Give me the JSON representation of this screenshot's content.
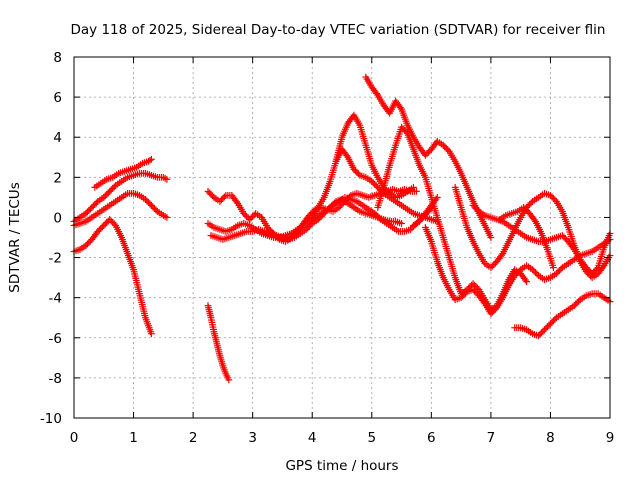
{
  "chart_data": {
    "type": "scatter",
    "title": "Day 118 of 2025, Sidereal Day-to-day VTEC variation (SDTVAR) for receiver flin",
    "xlabel": "GPS time / hours",
    "ylabel": "SDTVAR / TECUs",
    "xlim": [
      0,
      9
    ],
    "ylim": [
      -10,
      8
    ],
    "xticks": [
      0,
      1,
      2,
      3,
      4,
      5,
      6,
      7,
      8,
      9
    ],
    "yticks": [
      -10,
      -8,
      -6,
      -4,
      -2,
      0,
      2,
      4,
      6,
      8
    ],
    "grid": true,
    "marker": "+",
    "color": "#ff0000",
    "series": [
      {
        "x": [
          0.0,
          0.1,
          0.2,
          0.3,
          0.4,
          0.5,
          0.6,
          0.7,
          0.8,
          0.9,
          1.0,
          1.1,
          1.2,
          1.3
        ],
        "y": [
          -1.7,
          -1.6,
          -1.4,
          -1.1,
          -0.7,
          -0.4,
          -0.1,
          -0.4,
          -1.0,
          -1.8,
          -2.6,
          -3.8,
          -5.0,
          -5.8
        ]
      },
      {
        "x": [
          0.0,
          0.1,
          0.2,
          0.3,
          0.4,
          0.5,
          0.6,
          0.7,
          0.8,
          0.9,
          1.0,
          1.1,
          1.2,
          1.3,
          1.4,
          1.5,
          1.56
        ],
        "y": [
          -0.4,
          -0.3,
          -0.2,
          0.0,
          0.2,
          0.4,
          0.6,
          0.8,
          1.0,
          1.2,
          1.2,
          1.1,
          0.9,
          0.6,
          0.3,
          0.1,
          0.0
        ]
      },
      {
        "x": [
          0.0,
          0.1,
          0.2,
          0.3,
          0.4,
          0.5,
          0.6,
          0.7,
          0.8,
          0.9,
          1.0,
          1.1,
          1.2,
          1.3,
          1.4,
          1.5,
          1.56
        ],
        "y": [
          -0.2,
          0.0,
          0.2,
          0.5,
          0.8,
          1.0,
          1.3,
          1.6,
          1.8,
          2.0,
          2.1,
          2.2,
          2.2,
          2.1,
          2.0,
          2.0,
          1.9
        ]
      },
      {
        "x": [
          0.35,
          0.45,
          0.55,
          0.65,
          0.75,
          0.85,
          0.95,
          1.05,
          1.15,
          1.25,
          1.3
        ],
        "y": [
          1.5,
          1.7,
          1.9,
          2.0,
          2.2,
          2.3,
          2.4,
          2.5,
          2.7,
          2.8,
          2.9
        ]
      },
      {
        "x": [
          2.25,
          2.3,
          2.35,
          2.4,
          2.45,
          2.5,
          2.55,
          2.6
        ],
        "y": [
          -4.4,
          -5.0,
          -5.7,
          -6.3,
          -6.9,
          -7.4,
          -7.8,
          -8.1
        ]
      },
      {
        "x": [
          2.25,
          2.35,
          2.45,
          2.55,
          2.65,
          2.75,
          2.85,
          2.95,
          3.05,
          3.15,
          3.25,
          3.35,
          3.45,
          3.55,
          3.65,
          3.75,
          3.85,
          3.95,
          4.05,
          4.15,
          4.25,
          4.35,
          4.45,
          4.55,
          4.65,
          4.75,
          4.85,
          4.95,
          5.05,
          5.15,
          5.25,
          5.35,
          5.45,
          5.55,
          5.65,
          5.75,
          5.85,
          5.95,
          6.0
        ],
        "y": [
          -0.3,
          -0.5,
          -0.6,
          -0.7,
          -0.6,
          -0.4,
          -0.3,
          -0.4,
          -0.6,
          -0.8,
          -0.9,
          -1.0,
          -1.0,
          -0.9,
          -0.8,
          -0.6,
          -0.4,
          -0.2,
          0.0,
          0.2,
          0.4,
          0.6,
          0.8,
          1.0,
          0.9,
          0.8,
          0.6,
          0.4,
          0.2,
          -0.1,
          -0.3,
          -0.5,
          -0.7,
          -0.7,
          -0.6,
          -0.3,
          0.0,
          0.3,
          0.5
        ]
      },
      {
        "x": [
          2.25,
          2.35,
          2.45,
          2.55,
          2.65,
          2.75,
          2.85,
          2.95,
          3.05,
          3.15,
          3.25,
          3.35,
          3.45,
          3.55,
          3.65,
          3.75,
          3.85,
          3.95,
          4.05,
          4.15,
          4.25,
          4.35,
          4.45,
          4.55,
          4.65,
          4.75,
          4.85,
          4.95,
          5.05,
          5.15,
          5.25,
          5.35,
          5.45,
          5.55,
          5.65,
          5.75
        ],
        "y": [
          1.3,
          1.0,
          0.8,
          1.1,
          1.1,
          0.7,
          0.2,
          -0.1,
          0.2,
          0.0,
          -0.5,
          -0.8,
          -1.1,
          -1.2,
          -1.0,
          -0.7,
          -0.3,
          0.1,
          0.4,
          0.5,
          0.4,
          0.3,
          0.5,
          0.8,
          1.1,
          1.2,
          1.1,
          1.0,
          1.1,
          1.2,
          1.3,
          1.4,
          1.3,
          1.4,
          1.3,
          1.3
        ]
      },
      {
        "x": [
          2.3,
          2.4,
          2.5,
          2.6,
          2.7,
          2.8,
          2.9,
          3.0,
          3.1,
          3.2,
          3.3,
          3.4,
          3.5,
          3.6,
          3.7,
          3.8,
          3.9,
          4.0,
          4.1,
          4.2,
          4.3,
          4.4,
          4.5,
          4.6,
          4.7,
          4.8,
          4.9,
          5.0,
          5.1,
          5.2,
          5.3,
          5.4,
          5.5
        ],
        "y": [
          -0.9,
          -1.0,
          -1.1,
          -1.0,
          -0.9,
          -0.8,
          -0.7,
          -0.7,
          -0.6,
          -0.7,
          -0.8,
          -0.9,
          -1.0,
          -1.1,
          -1.0,
          -0.8,
          -0.6,
          -0.3,
          -0.1,
          0.2,
          0.5,
          0.8,
          0.9,
          0.7,
          0.5,
          0.3,
          0.2,
          0.1,
          0.0,
          -0.1,
          -0.2,
          -0.2,
          -0.3
        ]
      },
      {
        "x": [
          4.0,
          4.1,
          4.2,
          4.3,
          4.4,
          4.5,
          4.6,
          4.7,
          4.8,
          4.9,
          5.0,
          5.1,
          5.2,
          5.3,
          5.4,
          5.5,
          5.6,
          5.7,
          5.8,
          5.9,
          6.0,
          6.1
        ],
        "y": [
          0.0,
          0.5,
          1.0,
          1.8,
          2.8,
          3.4,
          3.0,
          2.4,
          2.1,
          2.0,
          1.8,
          1.5,
          1.2,
          1.0,
          0.8,
          0.6,
          0.4,
          0.2,
          0.1,
          0.0,
          -0.1,
          -0.2
        ]
      },
      {
        "x": [
          4.4,
          4.5,
          4.6,
          4.7,
          4.8,
          4.9,
          5.0,
          5.1,
          5.2,
          5.3,
          5.4,
          5.5,
          5.6,
          5.7
        ],
        "y": [
          2.8,
          4.0,
          4.7,
          5.1,
          4.6,
          3.6,
          2.6,
          2.0,
          1.5,
          1.2,
          1.0,
          1.1,
          1.3,
          1.5
        ]
      },
      {
        "x": [
          4.9,
          5.0,
          5.1,
          5.2,
          5.3,
          5.4,
          5.5,
          5.6,
          5.7,
          5.8,
          5.9,
          6.0,
          6.1,
          6.2,
          6.3,
          6.4,
          6.5,
          6.6,
          6.7,
          6.8,
          6.9,
          7.0
        ],
        "y": [
          7.0,
          6.5,
          6.1,
          5.6,
          5.2,
          5.8,
          5.4,
          4.6,
          4.0,
          3.5,
          3.1,
          3.4,
          3.8,
          3.6,
          3.3,
          2.8,
          2.2,
          1.5,
          0.8,
          0.2,
          -0.4,
          -1.0
        ]
      },
      {
        "x": [
          5.1,
          5.2,
          5.3,
          5.4,
          5.5,
          5.6,
          5.7,
          5.8,
          5.9,
          6.0,
          6.1,
          6.2,
          6.3,
          6.4,
          6.5,
          6.6,
          6.7,
          6.8,
          6.9,
          7.0,
          7.1,
          7.2,
          7.3,
          7.4,
          7.5,
          7.6
        ],
        "y": [
          0.5,
          1.5,
          2.6,
          3.6,
          4.5,
          4.2,
          3.4,
          2.6,
          2.0,
          1.0,
          0.0,
          -1.0,
          -2.0,
          -3.0,
          -3.8,
          -3.6,
          -3.3,
          -3.6,
          -4.1,
          -4.6,
          -4.4,
          -3.8,
          -3.1,
          -2.6,
          -2.8,
          -3.2
        ]
      },
      {
        "x": [
          5.7,
          5.8,
          5.9,
          6.0,
          6.1
        ],
        "y": [
          -0.4,
          -0.2,
          0.2,
          0.6,
          1.0
        ]
      },
      {
        "x": [
          5.9,
          6.0,
          6.1,
          6.2,
          6.3,
          6.4,
          6.5,
          6.6,
          6.7,
          6.8,
          6.9,
          7.0,
          7.1,
          7.2,
          7.3,
          7.4,
          7.5,
          7.6,
          7.7,
          7.8,
          7.9,
          8.0,
          8.1,
          8.2,
          8.3,
          8.4,
          8.5,
          8.6,
          8.7,
          8.8,
          8.9,
          9.0
        ],
        "y": [
          -0.5,
          -1.2,
          -2.2,
          -3.0,
          -3.6,
          -4.1,
          -4.0,
          -3.7,
          -3.6,
          -3.9,
          -4.3,
          -4.8,
          -4.5,
          -4.0,
          -3.4,
          -2.9,
          -2.6,
          -2.4,
          -2.6,
          -2.9,
          -3.1,
          -3.0,
          -2.8,
          -2.5,
          -2.3,
          -2.1,
          -1.9,
          -1.8,
          -1.7,
          -1.5,
          -1.3,
          -1.1
        ]
      },
      {
        "x": [
          6.4,
          6.5,
          6.6,
          6.7,
          6.8,
          6.9,
          7.0,
          7.1,
          7.2,
          7.3,
          7.4,
          7.5,
          7.6,
          7.7,
          7.8,
          7.9,
          8.0,
          8.1,
          8.2,
          8.3,
          8.4,
          8.5,
          8.6,
          8.7,
          8.8,
          8.9,
          9.0
        ],
        "y": [
          1.5,
          0.5,
          -0.5,
          -1.2,
          -1.8,
          -2.3,
          -2.5,
          -2.2,
          -1.8,
          -1.2,
          -0.6,
          0.0,
          0.5,
          0.8,
          1.0,
          1.2,
          1.1,
          0.8,
          0.3,
          -0.5,
          -1.4,
          -2.2,
          -2.7,
          -3.0,
          -2.8,
          -2.4,
          -1.9
        ]
      },
      {
        "x": [
          6.7,
          6.8,
          6.9,
          7.0,
          7.1,
          7.2,
          7.3,
          7.4,
          7.5,
          7.6,
          7.7,
          7.8,
          7.9,
          8.0,
          8.1,
          8.2,
          8.3,
          8.4,
          8.5,
          8.6,
          8.7,
          8.8,
          8.9,
          9.0
        ],
        "y": [
          0.6,
          0.3,
          0.1,
          0.0,
          -0.1,
          -0.2,
          -0.4,
          -0.6,
          -0.8,
          -1.0,
          -1.1,
          -1.2,
          -1.2,
          -1.1,
          -1.0,
          -0.9,
          -1.2,
          -1.6,
          -2.1,
          -2.5,
          -2.8,
          -2.5,
          -1.5,
          -0.8
        ]
      },
      {
        "x": [
          7.15,
          7.25,
          7.35,
          7.45,
          7.55,
          7.65,
          7.75,
          7.85,
          7.95,
          8.05
        ],
        "y": [
          -0.1,
          0.1,
          0.2,
          0.3,
          0.5,
          0.2,
          -0.2,
          -0.8,
          -1.6,
          -2.5
        ]
      },
      {
        "x": [
          7.4,
          7.5,
          7.6,
          7.7,
          7.8,
          7.9,
          8.0,
          8.1,
          8.2,
          8.3,
          8.4,
          8.5,
          8.6,
          8.7,
          8.8,
          8.9,
          9.0
        ],
        "y": [
          -5.5,
          -5.5,
          -5.6,
          -5.8,
          -5.9,
          -5.6,
          -5.3,
          -5.0,
          -4.8,
          -4.6,
          -4.4,
          -4.1,
          -3.9,
          -3.8,
          -3.8,
          -4.0,
          -4.2
        ]
      }
    ]
  }
}
